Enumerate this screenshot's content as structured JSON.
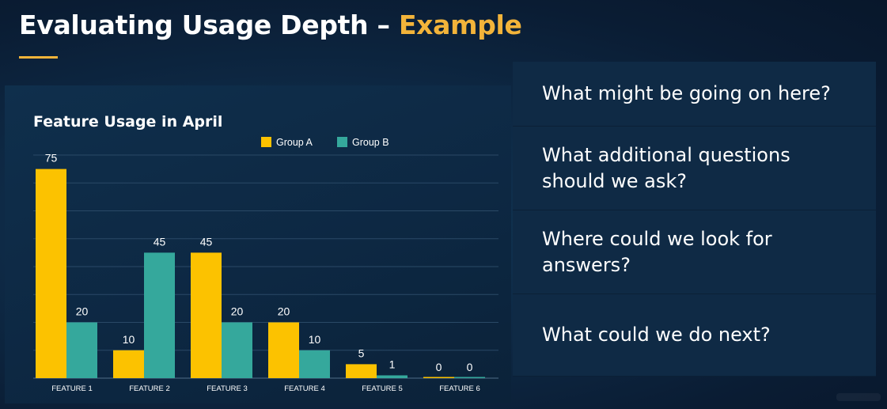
{
  "slide": {
    "title_main": "Evaluating Usage Depth – ",
    "title_accent": "Example",
    "accent_color": "#f3b43a"
  },
  "questions": [
    {
      "text": "What might be going on here?"
    },
    {
      "text": "What additional questions should we ask?"
    },
    {
      "text": "Where could we look for answers?"
    },
    {
      "text": "What could we do next?"
    }
  ],
  "chart_data": {
    "type": "bar",
    "title": "Feature Usage in April",
    "xlabel": "",
    "ylabel": "",
    "categories": [
      "FEATURE 1",
      "FEATURE 2",
      "FEATURE 3",
      "FEATURE 4",
      "FEATURE 5",
      "FEATURE 6"
    ],
    "series": [
      {
        "name": "Group A",
        "color": "#fcc200",
        "values": [
          75,
          10,
          45,
          20,
          5,
          0
        ]
      },
      {
        "name": "Group B",
        "color": "#35a89c",
        "values": [
          20,
          45,
          20,
          10,
          1,
          0
        ]
      }
    ],
    "ylim": [
      0,
      80
    ],
    "grid": true,
    "legend": "top-center",
    "data_labels": true
  }
}
